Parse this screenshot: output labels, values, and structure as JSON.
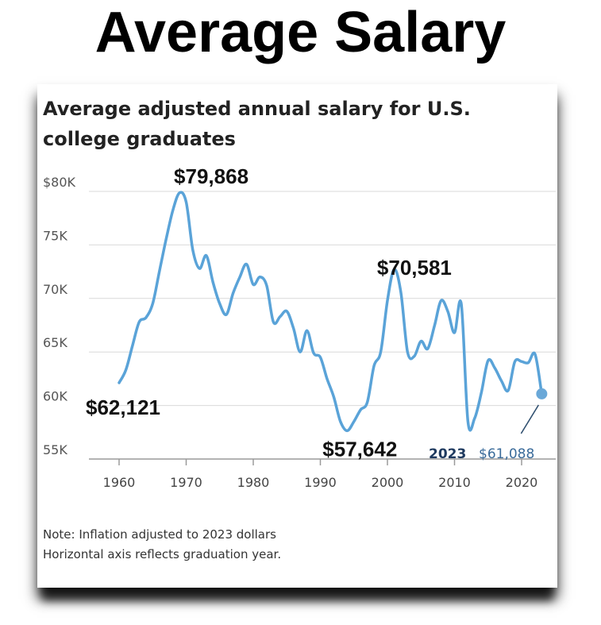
{
  "headline": "Average Salary",
  "chart_data": {
    "type": "line",
    "title": "Average adjusted annual salary for U.S. college graduates",
    "xlabel": "",
    "ylabel": "",
    "xlim": [
      1960,
      2023
    ],
    "ylim": [
      55000,
      80000
    ],
    "y_ticks": [
      {
        "value": 80000,
        "label": "$80K"
      },
      {
        "value": 75000,
        "label": "75K"
      },
      {
        "value": 70000,
        "label": "70K"
      },
      {
        "value": 65000,
        "label": "65K"
      },
      {
        "value": 60000,
        "label": "60K"
      },
      {
        "value": 55000,
        "label": "55K"
      }
    ],
    "x_ticks": [
      1960,
      1970,
      1980,
      1990,
      2000,
      2010,
      2020
    ],
    "grid": true,
    "line_color": "#5aa3d8",
    "series": [
      {
        "name": "",
        "points": [
          [
            1960,
            62121
          ],
          [
            1961,
            63300
          ],
          [
            1962,
            65600
          ],
          [
            1963,
            67800
          ],
          [
            1964,
            68200
          ],
          [
            1965,
            69500
          ],
          [
            1966,
            72500
          ],
          [
            1967,
            75500
          ],
          [
            1968,
            78200
          ],
          [
            1969,
            79868
          ],
          [
            1970,
            79000
          ],
          [
            1971,
            74500
          ],
          [
            1972,
            72800
          ],
          [
            1973,
            74000
          ],
          [
            1974,
            71500
          ],
          [
            1975,
            69500
          ],
          [
            1976,
            68500
          ],
          [
            1977,
            70500
          ],
          [
            1978,
            72000
          ],
          [
            1979,
            73200
          ],
          [
            1980,
            71300
          ],
          [
            1981,
            72000
          ],
          [
            1982,
            71200
          ],
          [
            1983,
            67800
          ],
          [
            1984,
            68300
          ],
          [
            1985,
            68800
          ],
          [
            1986,
            67200
          ],
          [
            1987,
            65000
          ],
          [
            1988,
            67000
          ],
          [
            1989,
            64900
          ],
          [
            1990,
            64500
          ],
          [
            1991,
            62500
          ],
          [
            1992,
            60800
          ],
          [
            1993,
            58500
          ],
          [
            1994,
            57642
          ],
          [
            1995,
            58500
          ],
          [
            1996,
            59600
          ],
          [
            1997,
            60300
          ],
          [
            1998,
            63700
          ],
          [
            1999,
            65000
          ],
          [
            2000,
            69800
          ],
          [
            2001,
            72700
          ],
          [
            2002,
            70581
          ],
          [
            2003,
            65000
          ],
          [
            2004,
            64600
          ],
          [
            2005,
            66000
          ],
          [
            2006,
            65300
          ],
          [
            2007,
            67400
          ],
          [
            2008,
            69800
          ],
          [
            2009,
            68800
          ],
          [
            2010,
            66800
          ],
          [
            2011,
            69500
          ],
          [
            2012,
            58500
          ],
          [
            2013,
            58800
          ],
          [
            2014,
            61200
          ],
          [
            2015,
            64200
          ],
          [
            2016,
            63500
          ],
          [
            2017,
            62300
          ],
          [
            2018,
            61400
          ],
          [
            2019,
            64100
          ],
          [
            2020,
            64100
          ],
          [
            2021,
            64000
          ],
          [
            2022,
            64800
          ],
          [
            2023,
            61088
          ]
        ]
      }
    ],
    "annotations": [
      {
        "text": "$79,868",
        "x": 1969,
        "y": 79868
      },
      {
        "text": "$62,121",
        "x": 1960,
        "y": 62121
      },
      {
        "text": "$70,581",
        "x": 2002,
        "y": 70581
      },
      {
        "text": "$57,642",
        "x": 1994,
        "y": 57642
      }
    ],
    "endpoint": {
      "year_label": "2023",
      "value_label": "$61,088",
      "x": 2023,
      "y": 61088,
      "color": "#6aa8d8"
    }
  },
  "note": {
    "line1": "Note: Inflation adjusted to 2023 dollars",
    "line2": "Horizontal axis reflects graduation year."
  }
}
